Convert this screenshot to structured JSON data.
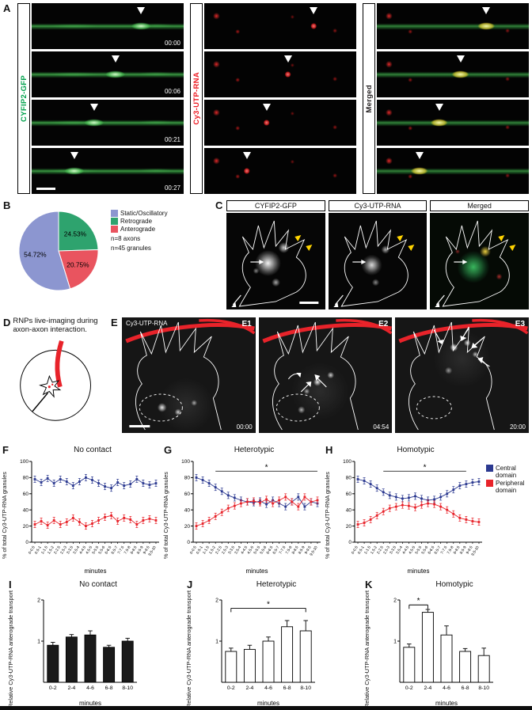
{
  "panel_labels": {
    "A": "A",
    "B": "B",
    "C": "C",
    "D": "D",
    "E": "E",
    "F": "F",
    "G": "G",
    "H": "H",
    "I": "I",
    "J": "J",
    "K": "K"
  },
  "panelA": {
    "channels": [
      {
        "name": "CYFIP2-GFP",
        "label_color": "#00a14b"
      },
      {
        "name": "Cy3-UTP-RNA",
        "label_color": "#ed1c24"
      },
      {
        "name": "Merged",
        "label_color": "#231f20"
      }
    ],
    "timestamps": [
      "00:00",
      "00:06",
      "00:21",
      "00:27"
    ]
  },
  "panelC": {
    "titles": [
      "CYFIP2-GFP",
      "Cy3-UTP-RNA",
      "Merged"
    ]
  },
  "panelD": {
    "caption": "RNPs live-imaging during axon-axon interaction."
  },
  "panelE": {
    "channel_label": "Cy3-UTP-RNA",
    "frames": [
      {
        "tag": "E1",
        "time": "00:00"
      },
      {
        "tag": "E2",
        "time": "04:54"
      },
      {
        "tag": "E3",
        "time": "20:00"
      }
    ]
  },
  "chart_data": [
    {
      "id": "B",
      "type": "pie",
      "slices": [
        {
          "label": "Static/Oscillatory",
          "value": 54.72,
          "pct": "54.72%",
          "color": "#8c96d0"
        },
        {
          "label": "Retrograde",
          "value": 24.53,
          "pct": "24.53%",
          "color": "#2ea36e"
        },
        {
          "label": "Anterograde",
          "value": 20.75,
          "pct": "20.75%",
          "color": "#e9545f"
        }
      ],
      "notes": [
        "n=8 axons",
        "n=45 granules"
      ]
    },
    {
      "id": "F",
      "type": "line",
      "title": "No contact",
      "xlabel": "minutes",
      "ylabel": "% of total Cy3-UTP-RNA granules",
      "ylim": [
        0,
        100
      ],
      "yticks": [
        0,
        20,
        40,
        60,
        80,
        100
      ],
      "categories": [
        "0-0.5",
        "0.5-1",
        "1-1.5",
        "1.5-2",
        "2-2.5",
        "2.5-3",
        "3-3.5",
        "3.5-4",
        "4-4.5",
        "4.5-5",
        "5-5.5",
        "5.5-6",
        "6-6.5",
        "6.5-7",
        "7-7.5",
        "7.5-8",
        "8-8.5",
        "8.5-9",
        "9-9.5",
        "9.5-10"
      ],
      "series": [
        {
          "name": "Central domain",
          "color": "#2b3990",
          "error": 4,
          "values": [
            78,
            74,
            79,
            73,
            78,
            75,
            70,
            75,
            80,
            77,
            73,
            69,
            67,
            74,
            70,
            72,
            78,
            73,
            71,
            73
          ]
        },
        {
          "name": "Peripheral domain",
          "color": "#e8232a",
          "error": 4,
          "values": [
            22,
            26,
            21,
            27,
            22,
            25,
            30,
            25,
            20,
            23,
            27,
            31,
            33,
            26,
            30,
            28,
            22,
            27,
            29,
            27
          ]
        }
      ],
      "sig": null
    },
    {
      "id": "G",
      "type": "line",
      "title": "Heterotypic",
      "xlabel": "minutes",
      "ylabel": "% of total Cy3-UTP-RNA granules",
      "ylim": [
        0,
        100
      ],
      "yticks": [
        0,
        20,
        40,
        60,
        80,
        100
      ],
      "categories": [
        "0-0.5",
        "0.5-1",
        "1-1.5",
        "1.5-2",
        "2-2.5",
        "2.5-3",
        "3-3.5",
        "3.5-4",
        "4-4.5",
        "4.5-5",
        "5-5.5",
        "5.5-6",
        "6-6.5",
        "6.5-7",
        "7-7.5",
        "7.5-8",
        "8-8.5",
        "8.5-9",
        "9-9.5",
        "9.5-10"
      ],
      "series": [
        {
          "name": "Central domain",
          "color": "#2b3990",
          "error": 4,
          "values": [
            80,
            77,
            73,
            68,
            63,
            58,
            55,
            52,
            50,
            49,
            51,
            47,
            52,
            48,
            44,
            50,
            56,
            44,
            50,
            48
          ]
        },
        {
          "name": "Peripheral domain",
          "color": "#e8232a",
          "error": 4,
          "values": [
            20,
            23,
            27,
            32,
            37,
            42,
            45,
            48,
            50,
            51,
            49,
            53,
            48,
            52,
            56,
            50,
            44,
            56,
            50,
            52
          ]
        }
      ],
      "sig": {
        "from": 3,
        "to": 19,
        "y": 88,
        "label": "*"
      }
    },
    {
      "id": "H",
      "type": "line",
      "title": "Homotypic",
      "xlabel": "minutes",
      "ylabel": "% of total Cy3-UTP-RNA granules",
      "ylim": [
        0,
        100
      ],
      "yticks": [
        0,
        20,
        40,
        60,
        80,
        100
      ],
      "categories": [
        "0-0.5",
        "0.5-1",
        "1-1.5",
        "1.5-2",
        "2-2.5",
        "2.5-3",
        "3-3.5",
        "3.5-4",
        "4-4.5",
        "4.5-5",
        "5-5.5",
        "5.5-6",
        "6-6.5",
        "6.5-7",
        "7-7.5",
        "7.5-8",
        "8-8.5",
        "8.5-9",
        "9-9.5",
        "9.5-10"
      ],
      "series": [
        {
          "name": "Central domain",
          "color": "#2b3990",
          "error": 4,
          "values": [
            78,
            76,
            72,
            67,
            62,
            58,
            56,
            54,
            55,
            57,
            54,
            52,
            53,
            56,
            60,
            65,
            70,
            72,
            74,
            75
          ]
        },
        {
          "name": "Peripheral domain",
          "color": "#e8232a",
          "error": 4,
          "values": [
            22,
            24,
            28,
            33,
            38,
            42,
            44,
            46,
            45,
            43,
            46,
            48,
            47,
            44,
            40,
            35,
            30,
            28,
            26,
            25
          ]
        }
      ],
      "sig": {
        "from": 4,
        "to": 17,
        "y": 88,
        "label": "*"
      }
    },
    {
      "id": "I",
      "type": "bar",
      "title": "No contact",
      "xlabel": "minutes",
      "ylabel": "Relative Cy3-UTP-RNA anterograde transport",
      "ylim": [
        0,
        2
      ],
      "yticks": [
        1,
        2
      ],
      "categories": [
        "0-2",
        "2-4",
        "4-6",
        "6-8",
        "8-10"
      ],
      "values": [
        0.9,
        1.1,
        1.15,
        0.85,
        1.0
      ],
      "errors": [
        0.07,
        0.06,
        0.1,
        0.05,
        0.07
      ],
      "bar_color": "#1a1a1a",
      "sig": null
    },
    {
      "id": "J",
      "type": "bar",
      "title": "Heterotypic",
      "xlabel": "minutes",
      "ylabel": "Relative Cy3-UTP-RNA anterograde transport",
      "ylim": [
        0,
        2
      ],
      "yticks": [
        1,
        2
      ],
      "categories": [
        "0-2",
        "2-4",
        "4-6",
        "6-8",
        "8-10"
      ],
      "values": [
        0.75,
        0.8,
        1.0,
        1.35,
        1.25
      ],
      "errors": [
        0.08,
        0.1,
        0.1,
        0.15,
        0.25
      ],
      "bar_color": "#ffffff",
      "sig": {
        "from": 0,
        "to": 4,
        "y": 1.8,
        "label": "*"
      }
    },
    {
      "id": "K",
      "type": "bar",
      "title": "Homotypic",
      "xlabel": "minutes",
      "ylabel": "Relative Cy3-UTP-RNA anterograde transport",
      "ylim": [
        0,
        2
      ],
      "yticks": [
        1,
        2
      ],
      "categories": [
        "0-2",
        "2-4",
        "4-6",
        "6-8",
        "8-10"
      ],
      "values": [
        0.85,
        1.7,
        1.15,
        0.75,
        0.65
      ],
      "errors": [
        0.08,
        0.07,
        0.22,
        0.07,
        0.18
      ],
      "bar_color": "#ffffff",
      "sig": {
        "from": 0,
        "to": 1,
        "y": 1.88,
        "label": "*"
      }
    }
  ]
}
